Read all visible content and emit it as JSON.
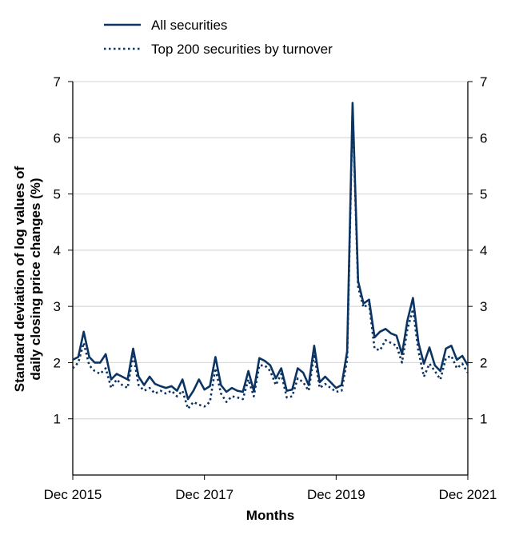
{
  "chart_data": {
    "type": "line",
    "xlabel": "Months",
    "ylabel_lines": [
      "Standard deviation of log values of",
      "daily closing price changes (%)"
    ],
    "ylim": [
      0,
      7
    ],
    "yticks": [
      1,
      2,
      3,
      4,
      5,
      6,
      7
    ],
    "xlim": [
      "Dec 2015",
      "Dec 2021"
    ],
    "xticks": [
      "Dec 2015",
      "Dec 2017",
      "Dec 2019",
      "Dec 2021"
    ],
    "grid": "horizontal",
    "legend_position": "top-left",
    "colors": {
      "line": "#0b3463",
      "grid": "#d9d9d9"
    },
    "series": [
      {
        "name": "All securities",
        "style": "solid",
        "values": [
          2.05,
          2.1,
          2.55,
          2.1,
          2.0,
          2.0,
          2.15,
          1.7,
          1.8,
          1.75,
          1.7,
          2.25,
          1.75,
          1.6,
          1.75,
          1.62,
          1.58,
          1.55,
          1.58,
          1.5,
          1.7,
          1.35,
          1.5,
          1.7,
          1.52,
          1.58,
          2.1,
          1.6,
          1.48,
          1.55,
          1.5,
          1.48,
          1.85,
          1.5,
          2.08,
          2.03,
          1.95,
          1.72,
          1.9,
          1.5,
          1.52,
          1.9,
          1.82,
          1.6,
          2.3,
          1.65,
          1.75,
          1.65,
          1.55,
          1.6,
          2.2,
          6.62,
          3.45,
          3.05,
          3.12,
          2.45,
          2.55,
          2.6,
          2.52,
          2.48,
          2.15,
          2.75,
          3.15,
          2.35,
          1.98,
          2.27,
          1.95,
          1.85,
          2.25,
          2.3,
          2.05,
          2.12,
          1.95
        ]
      },
      {
        "name": "Top 200 securities by turnover",
        "style": "dotted",
        "values": [
          1.9,
          2.0,
          2.35,
          1.95,
          1.85,
          1.8,
          1.9,
          1.55,
          1.7,
          1.6,
          1.55,
          2.15,
          1.6,
          1.5,
          1.55,
          1.45,
          1.5,
          1.45,
          1.5,
          1.4,
          1.5,
          1.18,
          1.3,
          1.25,
          1.22,
          1.3,
          1.9,
          1.45,
          1.3,
          1.4,
          1.38,
          1.35,
          1.7,
          1.4,
          1.95,
          1.95,
          1.85,
          1.6,
          1.8,
          1.38,
          1.4,
          1.72,
          1.65,
          1.5,
          2.15,
          1.55,
          1.62,
          1.55,
          1.48,
          1.5,
          2.05,
          6.52,
          3.35,
          2.98,
          3.05,
          2.25,
          2.22,
          2.4,
          2.35,
          2.3,
          2.0,
          2.6,
          2.95,
          2.2,
          1.75,
          1.98,
          1.85,
          1.7,
          2.08,
          2.12,
          1.9,
          1.98,
          1.82
        ]
      }
    ]
  }
}
